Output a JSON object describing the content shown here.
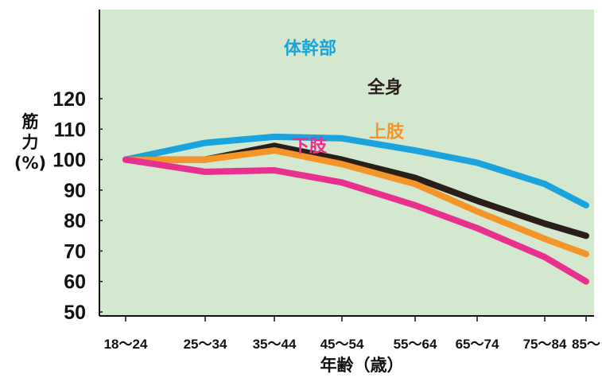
{
  "chart_data": {
    "type": "line",
    "title": "",
    "xlabel": "年齢（歳）",
    "ylabel_lines": [
      "筋",
      "力",
      "(%)"
    ],
    "categories": [
      "18～24",
      "25～34",
      "35～44",
      "45～54",
      "55～64",
      "65～74",
      "75～84",
      "85～"
    ],
    "yticks": [
      "120",
      "110",
      "100",
      "90",
      "80",
      "70",
      "60",
      "50"
    ],
    "ylim": [
      50,
      120
    ],
    "grid": false,
    "legend": "inline labels",
    "series": [
      {
        "name": "体幹部",
        "color": "#1aa3dc",
        "values": [
          100,
          105.5,
          107.5,
          107,
          103,
          99,
          92,
          85
        ]
      },
      {
        "name": "全身",
        "color": "#2a1e1a",
        "values": [
          100,
          100,
          104.5,
          100,
          94,
          86.5,
          79,
          75
        ]
      },
      {
        "name": "上肢",
        "color": "#f4952a",
        "values": [
          100,
          100,
          103,
          98.5,
          92,
          83,
          74,
          69
        ]
      },
      {
        "name": "下肢",
        "color": "#e8308f",
        "values": [
          100,
          96,
          96.5,
          92.5,
          85,
          77.5,
          68,
          60
        ]
      }
    ]
  }
}
